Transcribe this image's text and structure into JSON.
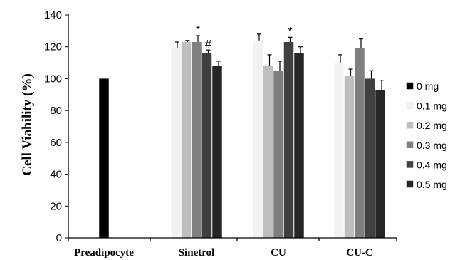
{
  "chart_data": {
    "type": "bar",
    "title": "",
    "xlabel": "",
    "ylabel": "Cell Viability (%)",
    "ylim": [
      0,
      140
    ],
    "yticks": [
      0,
      20,
      40,
      60,
      80,
      100,
      120,
      140
    ],
    "grid": false,
    "legend_position": "right",
    "categories": [
      "Preadipocyte",
      "Sinetrol",
      "CU",
      "CU-C"
    ],
    "series": [
      {
        "name": "0 mg",
        "color": "#000000",
        "values": [
          100,
          null,
          null,
          null
        ],
        "errors": [
          null,
          null,
          null,
          null
        ]
      },
      {
        "name": "0.1 mg",
        "color": "#f2f2f2",
        "values": [
          null,
          119,
          124,
          110
        ],
        "errors": [
          null,
          4,
          4,
          5
        ]
      },
      {
        "name": "0.2 mg",
        "color": "#bfbfbf",
        "values": [
          null,
          123,
          108,
          102
        ],
        "errors": [
          null,
          1,
          7,
          4
        ]
      },
      {
        "name": "0.3 mg",
        "color": "#7f7f7f",
        "values": [
          null,
          123,
          105,
          119
        ],
        "errors": [
          null,
          4,
          6,
          6
        ]
      },
      {
        "name": "0.4 mg",
        "color": "#404040",
        "values": [
          null,
          116,
          123,
          100
        ],
        "errors": [
          null,
          2,
          3,
          5
        ]
      },
      {
        "name": "0.5 mg",
        "color": "#262626",
        "values": [
          null,
          108,
          116,
          93
        ],
        "errors": [
          null,
          3,
          4,
          6
        ]
      }
    ],
    "annotations": [
      {
        "text": "*",
        "category": "Sinetrol",
        "series": "0.3 mg"
      },
      {
        "text": "#",
        "category": "Sinetrol",
        "series": "0.4 mg"
      },
      {
        "text": "*",
        "category": "CU",
        "series": "0.4 mg"
      }
    ]
  }
}
